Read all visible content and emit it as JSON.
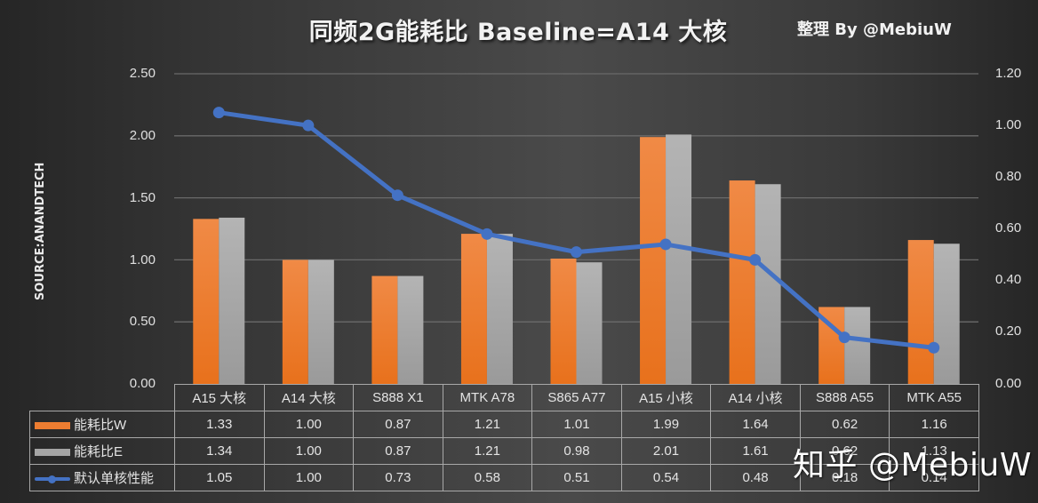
{
  "header": {
    "title": "同频2G能耗比 Baseline=A14 大核",
    "credit": "整理 By @MebiuW",
    "source_label": "SOURCE:ANANDTECH"
  },
  "watermark": "知乎 @MebiuW",
  "axes": {
    "left_ticks": [
      "2.50",
      "2.00",
      "1.50",
      "1.00",
      "0.50",
      "0.00"
    ],
    "right_ticks": [
      "1.20",
      "1.00",
      "0.80",
      "0.60",
      "0.40",
      "0.20",
      "0.00"
    ]
  },
  "colors": {
    "series_w": "#ed7d31",
    "series_e": "#a5a5a5",
    "series_perf": "#4472c4"
  },
  "table": {
    "categories": [
      "A15 大核",
      "A14 大核",
      "S888 X1",
      "MTK A78",
      "S865 A77",
      "A15 小核",
      "A14 小核",
      "S888 A55",
      "MTK  A55"
    ],
    "rows": [
      {
        "label": "能耗比W",
        "values": [
          "1.33",
          "1.00",
          "0.87",
          "1.21",
          "1.01",
          "1.99",
          "1.64",
          "0.62",
          "1.16"
        ]
      },
      {
        "label": "能耗比E",
        "values": [
          "1.34",
          "1.00",
          "0.87",
          "1.21",
          "0.98",
          "2.01",
          "1.61",
          "0.62",
          "1.13"
        ]
      },
      {
        "label": "默认单核性能",
        "values": [
          "1.05",
          "1.00",
          "0.73",
          "0.58",
          "0.51",
          "0.54",
          "0.48",
          "0.18",
          "0.14"
        ]
      }
    ]
  },
  "chart_data": {
    "type": "bar",
    "title": "同频2G能耗比 Baseline=A14 大核",
    "subtitle": "整理 By @MebiuW",
    "xlabel": "",
    "ylabel": "SOURCE:ANANDTECH",
    "categories": [
      "A15 大核",
      "A14 大核",
      "S888 X1",
      "MTK A78",
      "S865 A77",
      "A15 小核",
      "A14 小核",
      "S888 A55",
      "MTK  A55"
    ],
    "series": [
      {
        "name": "能耗比W",
        "type": "bar",
        "axis": "left",
        "values": [
          1.33,
          1.0,
          0.87,
          1.21,
          1.01,
          1.99,
          1.64,
          0.62,
          1.16
        ]
      },
      {
        "name": "能耗比E",
        "type": "bar",
        "axis": "left",
        "values": [
          1.34,
          1.0,
          0.87,
          1.21,
          0.98,
          2.01,
          1.61,
          0.62,
          1.13
        ]
      },
      {
        "name": "默认单核性能",
        "type": "line",
        "axis": "right",
        "values": [
          1.05,
          1.0,
          0.73,
          0.58,
          0.51,
          0.54,
          0.48,
          0.18,
          0.14
        ]
      }
    ],
    "ylim": [
      0,
      2.5
    ],
    "y2lim": [
      0,
      1.2
    ],
    "yticks": [
      0,
      0.5,
      1.0,
      1.5,
      2.0,
      2.5
    ],
    "y2ticks": [
      0,
      0.2,
      0.4,
      0.6,
      0.8,
      1.0,
      1.2
    ],
    "grid": true,
    "legend_position": "data-table"
  }
}
